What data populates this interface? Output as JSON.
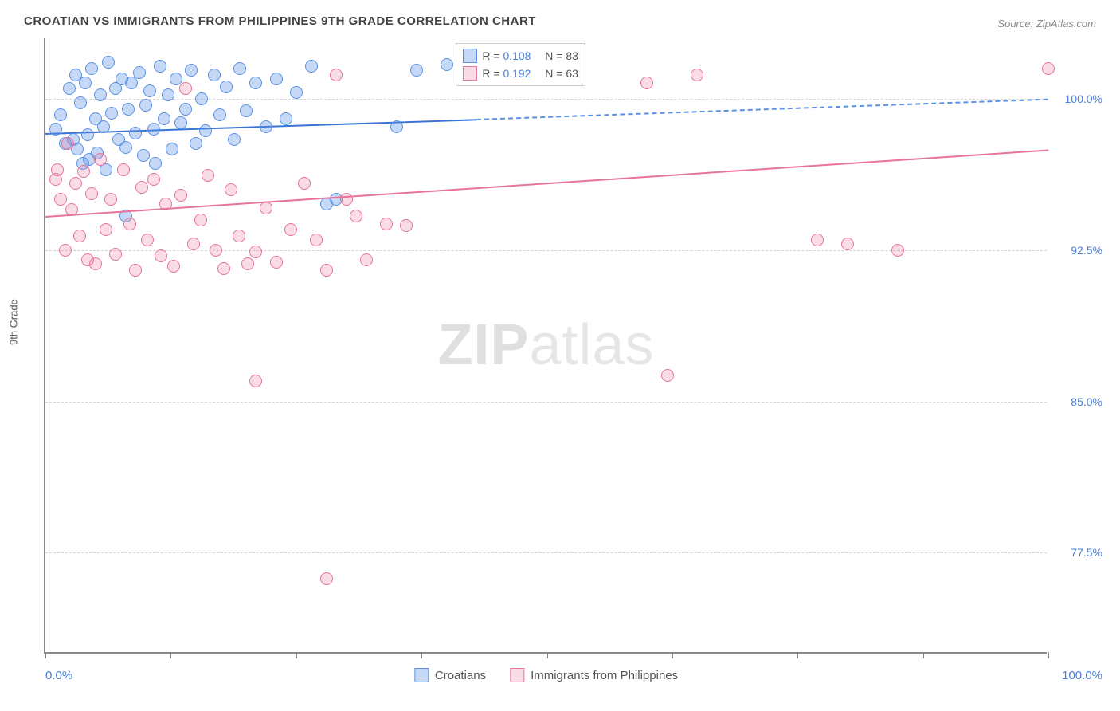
{
  "title": "CROATIAN VS IMMIGRANTS FROM PHILIPPINES 9TH GRADE CORRELATION CHART",
  "source_label": "Source:",
  "source_name": "ZipAtlas.com",
  "ylabel": "9th Grade",
  "watermark_a": "ZIP",
  "watermark_b": "atlas",
  "xlim": [
    0,
    100
  ],
  "ylim": [
    72.5,
    103
  ],
  "xaxis_min_label": "0.0%",
  "xaxis_max_label": "100.0%",
  "yticks": [
    77.5,
    85.0,
    92.5,
    100.0
  ],
  "ytick_labels": [
    "77.5%",
    "85.0%",
    "92.5%",
    "100.0%"
  ],
  "xtick_positions": [
    0,
    12.5,
    25,
    37.5,
    50,
    62.5,
    75,
    87.5,
    100
  ],
  "grid_color": "#d5d5d5",
  "axis_color": "#888888",
  "series": [
    {
      "name": "Croatians",
      "color_fill": "rgba(90,145,230,0.35)",
      "color_stroke": "#5a91e6",
      "r_value": "0.108",
      "n_value": "83",
      "marker_radius": 8,
      "reg_line": {
        "x1": 0,
        "y1": 98.3,
        "x2": 43,
        "y2": 99.0,
        "color": "#3b73d4",
        "width": 2
      },
      "reg_dash": {
        "x1": 43,
        "y1": 99.0,
        "x2": 100,
        "y2": 100.0,
        "color": "#5a91e6"
      },
      "points": [
        [
          1,
          98.5
        ],
        [
          1.5,
          99.2
        ],
        [
          2,
          97.8
        ],
        [
          2.4,
          100.5
        ],
        [
          2.8,
          98.0
        ],
        [
          3,
          101.2
        ],
        [
          3.2,
          97.5
        ],
        [
          3.5,
          99.8
        ],
        [
          3.7,
          96.8
        ],
        [
          4,
          100.8
        ],
        [
          4.2,
          98.2
        ],
        [
          4.4,
          97.0
        ],
        [
          4.6,
          101.5
        ],
        [
          5,
          99.0
        ],
        [
          5.2,
          97.3
        ],
        [
          5.5,
          100.2
        ],
        [
          5.8,
          98.6
        ],
        [
          6,
          96.5
        ],
        [
          6.3,
          101.8
        ],
        [
          6.6,
          99.3
        ],
        [
          7,
          100.5
        ],
        [
          7.3,
          98.0
        ],
        [
          7.6,
          101.0
        ],
        [
          8,
          97.6
        ],
        [
          8.3,
          99.5
        ],
        [
          8.6,
          100.8
        ],
        [
          9,
          98.3
        ],
        [
          9.4,
          101.3
        ],
        [
          9.8,
          97.2
        ],
        [
          10,
          99.7
        ],
        [
          10.4,
          100.4
        ],
        [
          10.8,
          98.5
        ],
        [
          11,
          96.8
        ],
        [
          11.4,
          101.6
        ],
        [
          11.8,
          99.0
        ],
        [
          12.2,
          100.2
        ],
        [
          12.6,
          97.5
        ],
        [
          13,
          101.0
        ],
        [
          13.5,
          98.8
        ],
        [
          14,
          99.5
        ],
        [
          14.5,
          101.4
        ],
        [
          15,
          97.8
        ],
        [
          15.6,
          100.0
        ],
        [
          16,
          98.4
        ],
        [
          16.8,
          101.2
        ],
        [
          17.4,
          99.2
        ],
        [
          18,
          100.6
        ],
        [
          18.8,
          98.0
        ],
        [
          19.4,
          101.5
        ],
        [
          20,
          99.4
        ],
        [
          21,
          100.8
        ],
        [
          22,
          98.6
        ],
        [
          23,
          101.0
        ],
        [
          24,
          99.0
        ],
        [
          25,
          100.3
        ],
        [
          26.5,
          101.6
        ],
        [
          28,
          94.8
        ],
        [
          29,
          95.0
        ],
        [
          35,
          98.6
        ],
        [
          37,
          101.4
        ],
        [
          40,
          101.7
        ],
        [
          8,
          94.2
        ]
      ]
    },
    {
      "name": "Immigrants from Philippines",
      "color_fill": "rgba(232,115,155,0.25)",
      "color_stroke": "#e8739b",
      "r_value": "0.192",
      "n_value": "63",
      "marker_radius": 8,
      "reg_line": {
        "x1": 0,
        "y1": 94.2,
        "x2": 100,
        "y2": 97.5,
        "color": "#e8739b",
        "width": 2
      },
      "points": [
        [
          1,
          96.0
        ],
        [
          1.5,
          95.0
        ],
        [
          2,
          92.5
        ],
        [
          2.2,
          97.8
        ],
        [
          2.6,
          94.5
        ],
        [
          3,
          95.8
        ],
        [
          3.4,
          93.2
        ],
        [
          3.8,
          96.4
        ],
        [
          4.2,
          92.0
        ],
        [
          4.6,
          95.3
        ],
        [
          5,
          91.8
        ],
        [
          5.5,
          97.0
        ],
        [
          6,
          93.5
        ],
        [
          6.5,
          95.0
        ],
        [
          7,
          92.3
        ],
        [
          7.8,
          96.5
        ],
        [
          8.4,
          93.8
        ],
        [
          9,
          91.5
        ],
        [
          9.6,
          95.6
        ],
        [
          10.2,
          93.0
        ],
        [
          10.8,
          96.0
        ],
        [
          11.5,
          92.2
        ],
        [
          12,
          94.8
        ],
        [
          12.8,
          91.7
        ],
        [
          13.5,
          95.2
        ],
        [
          14,
          100.5
        ],
        [
          14.8,
          92.8
        ],
        [
          15.5,
          94.0
        ],
        [
          16.2,
          96.2
        ],
        [
          17,
          92.5
        ],
        [
          17.8,
          91.6
        ],
        [
          18.5,
          95.5
        ],
        [
          19.3,
          93.2
        ],
        [
          20.2,
          91.8
        ],
        [
          21,
          92.4
        ],
        [
          22,
          94.6
        ],
        [
          23,
          91.9
        ],
        [
          24.5,
          93.5
        ],
        [
          25.8,
          95.8
        ],
        [
          27,
          93.0
        ],
        [
          28,
          91.5
        ],
        [
          29,
          101.2
        ],
        [
          30,
          95.0
        ],
        [
          31,
          94.2
        ],
        [
          32,
          92.0
        ],
        [
          34,
          93.8
        ],
        [
          36,
          93.7
        ],
        [
          21,
          86.0
        ],
        [
          28,
          76.2
        ],
        [
          60,
          100.8
        ],
        [
          62,
          86.3
        ],
        [
          65,
          101.2
        ],
        [
          77,
          93.0
        ],
        [
          80,
          92.8
        ],
        [
          85,
          92.5
        ],
        [
          100,
          101.5
        ],
        [
          1.2,
          96.5
        ]
      ]
    }
  ],
  "legend_title_r": "R =",
  "legend_title_n": "N =",
  "bottom_legend": [
    "Croatians",
    "Immigrants from Philippines"
  ]
}
